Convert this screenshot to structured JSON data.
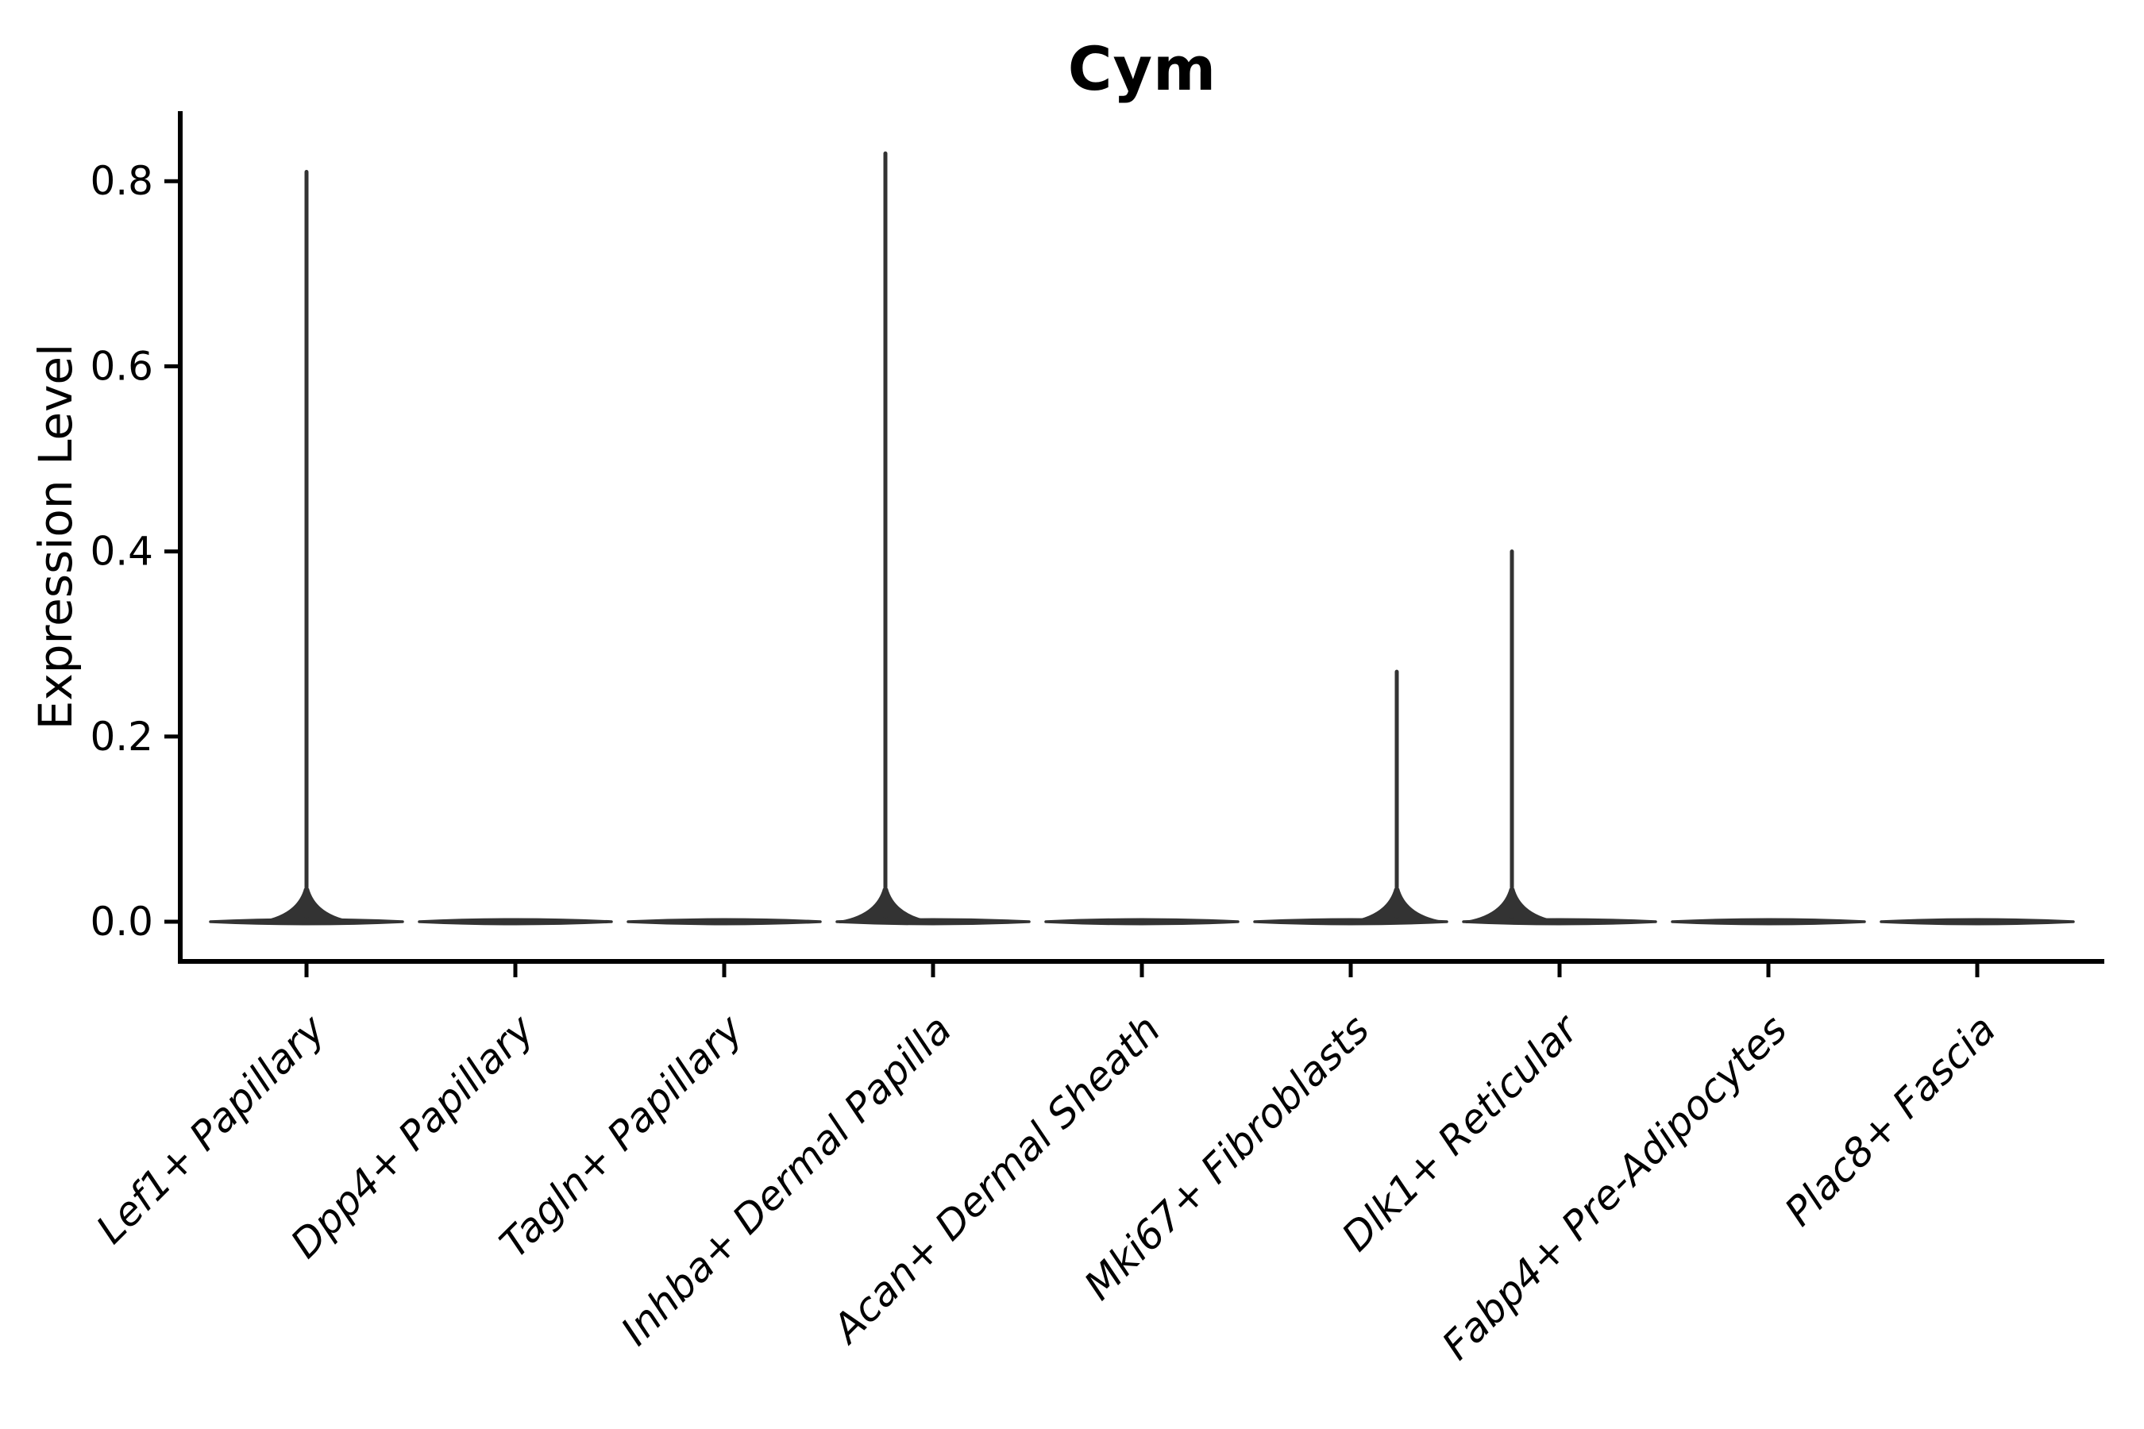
{
  "figure": {
    "background": "#ffffff"
  },
  "chart_data": {
    "type": "violin",
    "title": "Cym",
    "ylabel": "Expression Level",
    "xlabel": "",
    "grid": false,
    "legend": "none",
    "ylim": [
      -0.043,
      0.876
    ],
    "ytick_values": [
      0.0,
      0.2,
      0.4,
      0.6,
      0.8
    ],
    "ytick_labels": [
      "0.0",
      "0.2",
      "0.4",
      "0.6",
      "0.8"
    ],
    "categories": [
      "Lef1+ Papillary",
      "Dpp4+ Papillary",
      "Tagln+ Papillary",
      "Inhba+ Dermal Papilla",
      "Acan+ Dermal Sheath",
      "Mki67+ Fibroblasts",
      "Dlk1+ Reticular",
      "Fabp4+ Pre-Adipocytes",
      "Plac8+ Fascia"
    ],
    "series": [
      {
        "category": "Lef1+ Papillary",
        "baseline_value": 0.0,
        "max_expression": 0.81,
        "spike_offset_frac": 0.0
      },
      {
        "category": "Dpp4+ Papillary",
        "baseline_value": 0.0,
        "max_expression": 0.0,
        "spike_offset_frac": 0.0
      },
      {
        "category": "Tagln+ Papillary",
        "baseline_value": 0.0,
        "max_expression": 0.0,
        "spike_offset_frac": 0.0
      },
      {
        "category": "Inhba+ Dermal Papilla",
        "baseline_value": 0.0,
        "max_expression": 0.83,
        "spike_offset_frac": -0.23
      },
      {
        "category": "Acan+ Dermal Sheath",
        "baseline_value": 0.0,
        "max_expression": 0.0,
        "spike_offset_frac": 0.0
      },
      {
        "category": "Mki67+ Fibroblasts",
        "baseline_value": 0.0,
        "max_expression": 0.27,
        "spike_offset_frac": 0.22
      },
      {
        "category": "Dlk1+ Reticular",
        "baseline_value": 0.0,
        "max_expression": 0.4,
        "spike_offset_frac": -0.23
      },
      {
        "category": "Fabp4+ Pre-Adipocytes",
        "baseline_value": 0.0,
        "max_expression": 0.0,
        "spike_offset_frac": 0.0
      },
      {
        "category": "Plac8+ Fascia",
        "baseline_value": 0.0,
        "max_expression": 0.0,
        "spike_offset_frac": 0.0
      }
    ],
    "colors": {
      "violin": "#333333",
      "axis": "#000000",
      "text": "#000000"
    }
  }
}
